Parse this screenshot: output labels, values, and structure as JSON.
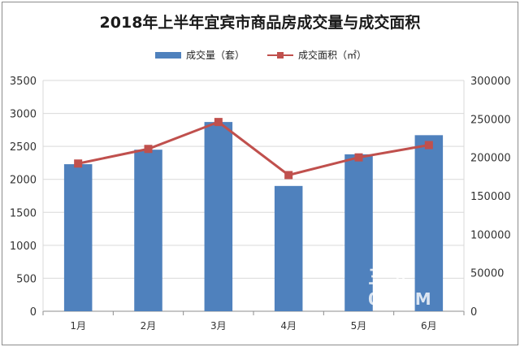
{
  "chart_data": {
    "type": "bar",
    "title": "2018年上半年宜宾市商品房成交量与成交面积",
    "categories": [
      "1月",
      "2月",
      "3月",
      "4月",
      "5月",
      "6月"
    ],
    "series": [
      {
        "name": "成交量（套）",
        "type": "bar",
        "axis": "left",
        "color": "#4f81bd",
        "values": [
          2230,
          2450,
          2870,
          1900,
          2380,
          2670
        ]
      },
      {
        "name": "成交面积（㎡）",
        "type": "line",
        "axis": "right",
        "color": "#c0504d",
        "values": [
          192000,
          211000,
          246000,
          177000,
          200000,
          216000
        ]
      }
    ],
    "y_left": {
      "min": 0,
      "max": 3500,
      "ticks": [
        "0",
        "500",
        "1000",
        "1500",
        "2000",
        "2500",
        "3000",
        "3500"
      ]
    },
    "y_right": {
      "min": 0,
      "max": 300000,
      "ticks": [
        "0",
        "50000",
        "100000",
        "150000",
        "200000",
        "250000",
        "300000"
      ]
    },
    "grid": true,
    "legend": "top"
  },
  "watermark": {
    "line1": "三 房",
    "line2": "0 OMM"
  }
}
